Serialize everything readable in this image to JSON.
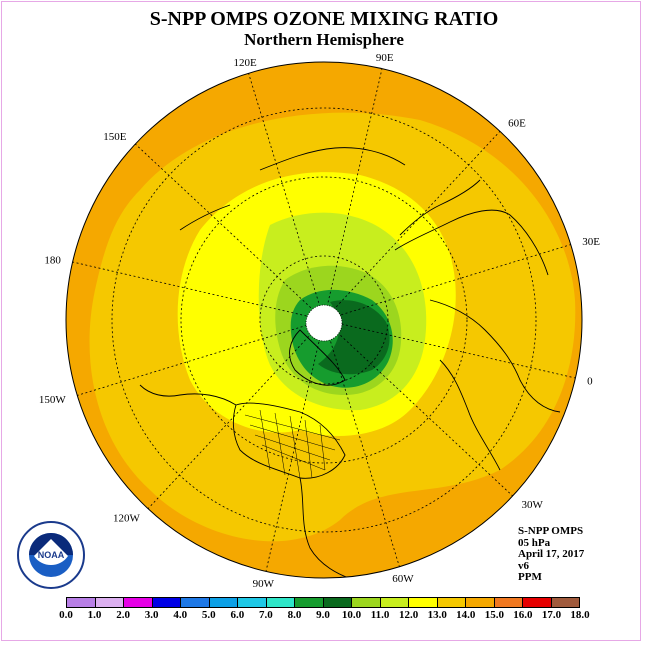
{
  "header": {
    "title": "S-NPP OMPS OZONE MIXING RATIO",
    "subtitle": "Northern Hemisphere"
  },
  "longitude_labels": [
    "90E",
    "60E",
    "30E",
    "0",
    "30W",
    "60W",
    "90W",
    "120W",
    "150W",
    "180",
    "150E",
    "120E"
  ],
  "info": {
    "line1": "S-NPP OMPS",
    "line2": "05 hPa",
    "line3": "April 17, 2017",
    "line4": "v6",
    "line5": "PPM"
  },
  "logo": {
    "text": "NOAA",
    "icon": "noaa-logo-icon"
  },
  "colorbar": {
    "ticks": [
      "0.0",
      "1.0",
      "2.0",
      "3.0",
      "4.0",
      "5.0",
      "6.0",
      "7.0",
      "8.0",
      "9.0",
      "10.0",
      "11.0",
      "12.0",
      "13.0",
      "14.0",
      "15.0",
      "16.0",
      "17.0",
      "18.0"
    ],
    "colors": [
      "#b87fe6",
      "#dcb0f0",
      "#e600e6",
      "#0000e6",
      "#1e78e6",
      "#0ca0e6",
      "#1ec8e6",
      "#2ee6c8",
      "#169c2e",
      "#0a6a1e",
      "#9cd61e",
      "#c8ee1e",
      "#ffff00",
      "#f5c800",
      "#f5a800",
      "#f07820",
      "#e60000",
      "#a05a3c"
    ]
  },
  "map_colors": {
    "ocean_outer": "#f5a800",
    "band_orange": "#f5c800",
    "band_yellow": "#ffff00",
    "band_lime": "#c8ee1e",
    "band_green": "#9cd61e",
    "band_dark": "#169c2e",
    "band_darkest": "#0a6a1e",
    "pole_missing": "#ffffff"
  }
}
